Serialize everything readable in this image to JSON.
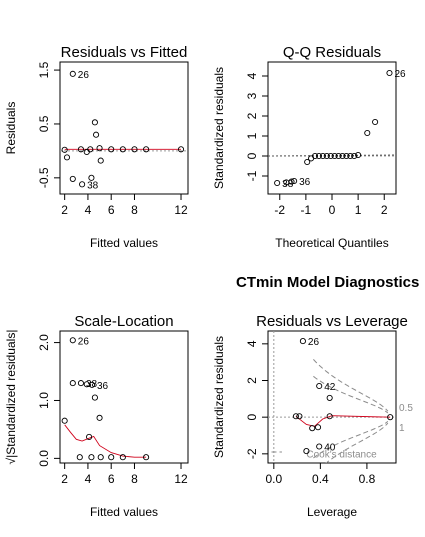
{
  "main_title": "CTmin Model Diagnostics",
  "chart_data": [
    {
      "type": "scatter",
      "title": "Residuals vs Fitted",
      "xlabel": "Fitted values",
      "ylabel": "Residuals",
      "xlim": [
        1.6,
        12.6
      ],
      "ylim": [
        -0.8,
        1.65
      ],
      "xticks": [
        "2",
        "4",
        "6",
        "8",
        "12"
      ],
      "yticks": [
        "-0.5",
        "0.5",
        "1.5"
      ],
      "points": [
        {
          "x": 2.0,
          "y": 0.02
        },
        {
          "x": 2.2,
          "y": -0.12
        },
        {
          "x": 2.7,
          "y": 1.43,
          "label": "26"
        },
        {
          "x": 2.7,
          "y": -0.52
        },
        {
          "x": 3.4,
          "y": 0.03
        },
        {
          "x": 3.5,
          "y": -0.62,
          "label": "38"
        },
        {
          "x": 3.9,
          "y": -0.02
        },
        {
          "x": 4.2,
          "y": 0.03
        },
        {
          "x": 4.3,
          "y": -0.5
        },
        {
          "x": 4.6,
          "y": 0.53
        },
        {
          "x": 4.7,
          "y": 0.3
        },
        {
          "x": 5.0,
          "y": 0.05
        },
        {
          "x": 5.1,
          "y": -0.18
        },
        {
          "x": 6.0,
          "y": 0.03
        },
        {
          "x": 7.0,
          "y": 0.03
        },
        {
          "x": 8.0,
          "y": 0.03
        },
        {
          "x": 9.0,
          "y": 0.03
        },
        {
          "x": 12.0,
          "y": 0.03
        }
      ],
      "smooth": [
        [
          2.0,
          0.03
        ],
        [
          12.0,
          0.03
        ]
      ],
      "refline": 0
    },
    {
      "type": "scatter",
      "title": "Q-Q Residuals",
      "xlabel": "Theoretical Quantiles",
      "ylabel": "Standardized residuals",
      "xlim": [
        -2.45,
        2.45
      ],
      "ylim": [
        -1.9,
        4.7
      ],
      "xticks": [
        "-2",
        "-1",
        "0",
        "1",
        "2"
      ],
      "yticks": [
        "-1",
        "0",
        "1",
        "2",
        "3",
        "4"
      ],
      "points": [
        {
          "x": -2.1,
          "y": -1.35,
          "label": "38"
        },
        {
          "x": -1.75,
          "y": -1.32
        },
        {
          "x": -1.55,
          "y": -1.28
        },
        {
          "x": -1.45,
          "y": -1.25,
          "label": "36"
        },
        {
          "x": -0.95,
          "y": -0.3
        },
        {
          "x": -0.8,
          "y": -0.12
        },
        {
          "x": -0.65,
          "y": 0.0
        },
        {
          "x": -0.5,
          "y": 0.0
        },
        {
          "x": -0.35,
          "y": 0.0
        },
        {
          "x": -0.2,
          "y": 0.0
        },
        {
          "x": -0.05,
          "y": 0.0
        },
        {
          "x": 0.1,
          "y": 0.0
        },
        {
          "x": 0.25,
          "y": 0.0
        },
        {
          "x": 0.4,
          "y": 0.0
        },
        {
          "x": 0.55,
          "y": 0.0
        },
        {
          "x": 0.7,
          "y": 0.0
        },
        {
          "x": 0.85,
          "y": 0.0
        },
        {
          "x": 1.0,
          "y": 0.05
        },
        {
          "x": 1.35,
          "y": 1.15
        },
        {
          "x": 1.65,
          "y": 1.7
        },
        {
          "x": 2.2,
          "y": 4.15,
          "label": "26"
        }
      ],
      "refline": 0
    },
    {
      "type": "scatter",
      "title": "Scale-Location",
      "xlabel": "Fitted values",
      "ylabel": "√|Standardized residuals|",
      "xlim": [
        1.6,
        12.6
      ],
      "ylim": [
        -0.08,
        2.2
      ],
      "xticks": [
        "2",
        "4",
        "6",
        "8",
        "12"
      ],
      "yticks": [
        "0.0",
        "1.0",
        "2.0"
      ],
      "points": [
        {
          "x": 2.0,
          "y": 0.65
        },
        {
          "x": 2.7,
          "y": 2.04,
          "label": "26"
        },
        {
          "x": 2.7,
          "y": 1.3
        },
        {
          "x": 3.3,
          "y": 0.02
        },
        {
          "x": 3.4,
          "y": 1.3,
          "label": "38"
        },
        {
          "x": 3.9,
          "y": 1.28
        },
        {
          "x": 4.1,
          "y": 0.37
        },
        {
          "x": 4.3,
          "y": 0.02
        },
        {
          "x": 4.35,
          "y": 1.27,
          "label": "36"
        },
        {
          "x": 4.6,
          "y": 1.05
        },
        {
          "x": 5.0,
          "y": 0.7
        },
        {
          "x": 5.1,
          "y": 0.02
        },
        {
          "x": 6.0,
          "y": 0.02
        },
        {
          "x": 7.0,
          "y": 0.02
        },
        {
          "x": 9.0,
          "y": 0.02
        }
      ],
      "smooth": [
        [
          2.0,
          0.58
        ],
        [
          2.5,
          0.45
        ],
        [
          3.0,
          0.33
        ],
        [
          3.5,
          0.3
        ],
        [
          4.0,
          0.34
        ],
        [
          4.5,
          0.38
        ],
        [
          5.0,
          0.22
        ],
        [
          6.0,
          0.1
        ],
        [
          7.0,
          0.04
        ],
        [
          8.0,
          0.02
        ],
        [
          9.0,
          0.02
        ]
      ]
    },
    {
      "type": "scatter",
      "title": "Residuals vs Leverage",
      "xlabel": "Leverage",
      "ylabel": "Standardized residuals",
      "xlim": [
        -0.05,
        1.05
      ],
      "ylim": [
        -2.5,
        4.7
      ],
      "xticks": [
        "0.0",
        "0.4",
        "0.8"
      ],
      "yticks": [
        "-2",
        "0",
        "2",
        "4"
      ],
      "points": [
        {
          "x": 0.19,
          "y": 0.05
        },
        {
          "x": 0.22,
          "y": 0.05
        },
        {
          "x": 0.25,
          "y": 4.15,
          "label": "26"
        },
        {
          "x": 0.28,
          "y": -1.85
        },
        {
          "x": 0.33,
          "y": -0.6
        },
        {
          "x": 0.38,
          "y": -0.55
        },
        {
          "x": 0.39,
          "y": 1.7,
          "label": "42"
        },
        {
          "x": 0.39,
          "y": -1.6,
          "label": "40"
        },
        {
          "x": 0.48,
          "y": 1.05
        },
        {
          "x": 0.48,
          "y": 0.05
        },
        {
          "x": 1.0,
          "y": 0.0
        }
      ],
      "smooth": [
        [
          0.19,
          0.05
        ],
        [
          0.28,
          -0.4
        ],
        [
          0.35,
          -0.5
        ],
        [
          0.42,
          -0.1
        ],
        [
          0.5,
          0.08
        ],
        [
          1.0,
          0.0
        ]
      ],
      "refline": 0,
      "cooks_labels": [
        "0.5",
        "1"
      ],
      "cooks_legend": "Cook's distance"
    }
  ]
}
